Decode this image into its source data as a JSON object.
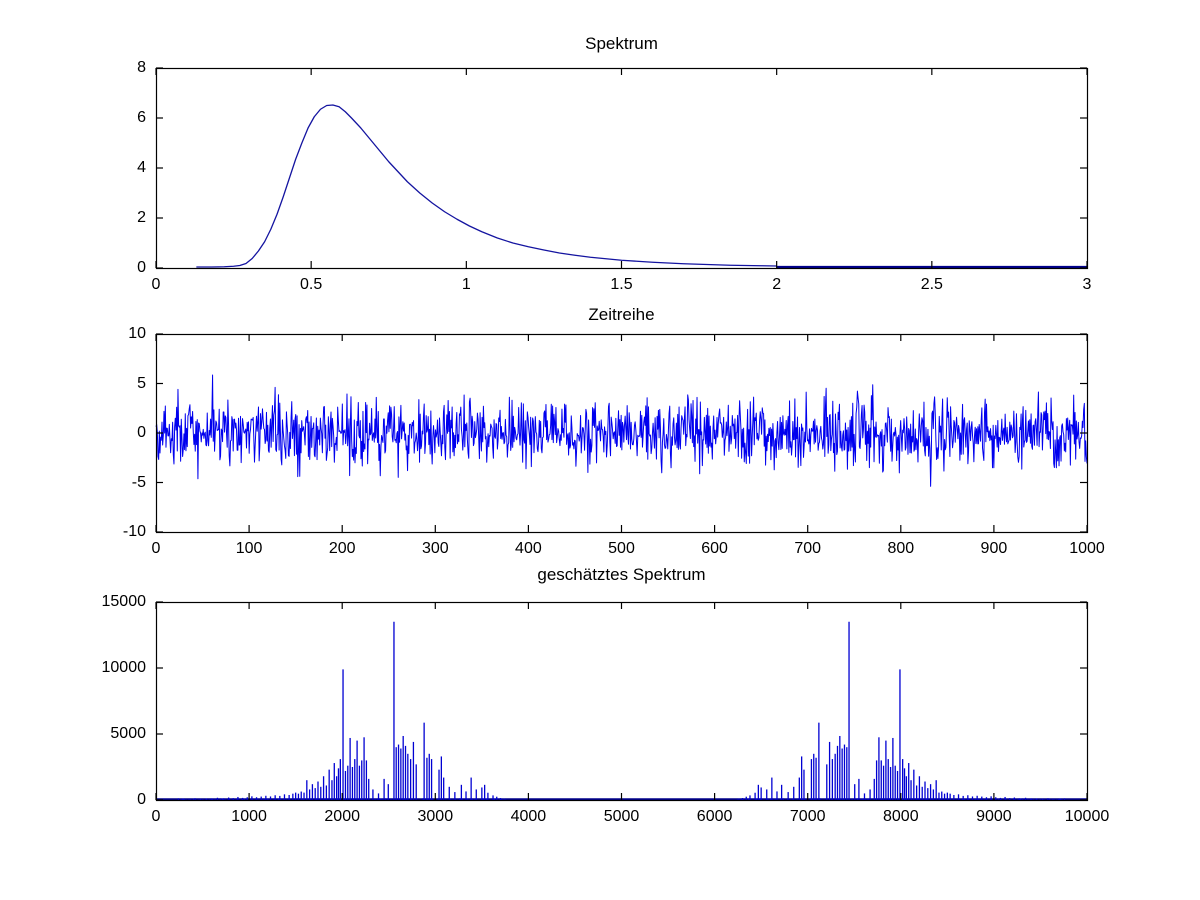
{
  "figure": {
    "background": "#ffffff",
    "type": "matlab-style-figure",
    "subplot_count": 3
  },
  "colors": {
    "frame": "#000000",
    "tick_text": "#000000",
    "spectrum_curve": "#1414A0",
    "baseline_thick": "#00008B",
    "timeseries_line": "#0000EE",
    "estimate_spikes": "#0000D2"
  },
  "chart_data": [
    {
      "type": "line",
      "title": "Spektrum",
      "xlim": [
        0,
        3
      ],
      "ylim": [
        0,
        8
      ],
      "xticks": [
        "0",
        "0.5",
        "1",
        "1.5",
        "2",
        "2.5",
        "3"
      ],
      "yticks": [
        "0",
        "2",
        "4",
        "6",
        "8"
      ],
      "grid": false,
      "legend": null,
      "peak": {
        "x": 0.55,
        "y": 6.5
      },
      "curve": [
        [
          0.13,
          0.04
        ],
        [
          0.18,
          0.04
        ],
        [
          0.22,
          0.05
        ],
        [
          0.25,
          0.07
        ],
        [
          0.27,
          0.1
        ],
        [
          0.29,
          0.18
        ],
        [
          0.31,
          0.38
        ],
        [
          0.33,
          0.68
        ],
        [
          0.35,
          1.05
        ],
        [
          0.37,
          1.55
        ],
        [
          0.39,
          2.15
        ],
        [
          0.41,
          2.85
        ],
        [
          0.43,
          3.6
        ],
        [
          0.45,
          4.35
        ],
        [
          0.47,
          5.0
        ],
        [
          0.49,
          5.6
        ],
        [
          0.51,
          6.05
        ],
        [
          0.53,
          6.35
        ],
        [
          0.55,
          6.5
        ],
        [
          0.57,
          6.52
        ],
        [
          0.59,
          6.45
        ],
        [
          0.61,
          6.25
        ],
        [
          0.63,
          6.0
        ],
        [
          0.66,
          5.6
        ],
        [
          0.69,
          5.15
        ],
        [
          0.72,
          4.7
        ],
        [
          0.75,
          4.25
        ],
        [
          0.78,
          3.85
        ],
        [
          0.81,
          3.45
        ],
        [
          0.85,
          3.0
        ],
        [
          0.89,
          2.6
        ],
        [
          0.93,
          2.25
        ],
        [
          0.97,
          1.95
        ],
        [
          1.01,
          1.68
        ],
        [
          1.05,
          1.45
        ],
        [
          1.1,
          1.2
        ],
        [
          1.15,
          1.0
        ],
        [
          1.2,
          0.85
        ],
        [
          1.25,
          0.72
        ],
        [
          1.3,
          0.6
        ],
        [
          1.35,
          0.51
        ],
        [
          1.4,
          0.43
        ],
        [
          1.45,
          0.37
        ],
        [
          1.5,
          0.31
        ],
        [
          1.55,
          0.27
        ],
        [
          1.6,
          0.23
        ],
        [
          1.65,
          0.2
        ],
        [
          1.7,
          0.17
        ],
        [
          1.75,
          0.15
        ],
        [
          1.8,
          0.13
        ],
        [
          1.85,
          0.11
        ],
        [
          1.9,
          0.1
        ],
        [
          1.95,
          0.09
        ],
        [
          2.0,
          0.08
        ]
      ],
      "flat_tail": {
        "from_x": 2.0,
        "to_x": 3.0,
        "y": 0.04,
        "appearance": "thick dark-blue line on axis"
      }
    },
    {
      "type": "line",
      "title": "Zeitreihe",
      "xlim": [
        0,
        1000
      ],
      "ylim": [
        -10,
        10
      ],
      "xticks": [
        "0",
        "100",
        "200",
        "300",
        "400",
        "500",
        "600",
        "700",
        "800",
        "900",
        "1000"
      ],
      "yticks": [
        "-10",
        "-5",
        "0",
        "5",
        "10"
      ],
      "grid": false,
      "legend": null,
      "noise_model": {
        "visual_estimate": true,
        "n_points": 1400,
        "mean": 0,
        "sigma": 1.65,
        "observed_range": [
          -6.8,
          6.6
        ],
        "solid_band": [
          -2.5,
          2.5
        ],
        "seed": 42,
        "method": "sum6uniform"
      }
    },
    {
      "type": "stem",
      "title": "geschätztes Spektrum",
      "xlim": [
        0,
        10000
      ],
      "ylim": [
        0,
        15000
      ],
      "xticks": [
        "0",
        "1000",
        "2000",
        "3000",
        "4000",
        "5000",
        "6000",
        "7000",
        "8000",
        "9000",
        "10000"
      ],
      "yticks": [
        "0",
        "5000",
        "10000",
        "15000"
      ],
      "grid": false,
      "legend": null,
      "mirror_axis": 5000,
      "mirrored": true,
      "major_peaks_left_half": [
        [
          300,
          70
        ],
        [
          370,
          50
        ],
        [
          420,
          130
        ],
        [
          480,
          90
        ],
        [
          540,
          110
        ],
        [
          600,
          70
        ],
        [
          660,
          170
        ],
        [
          720,
          110
        ],
        [
          780,
          190
        ],
        [
          830,
          140
        ],
        [
          880,
          230
        ],
        [
          930,
          160
        ],
        [
          980,
          210
        ],
        [
          1030,
          280
        ],
        [
          1080,
          210
        ],
        [
          1130,
          260
        ],
        [
          1180,
          320
        ],
        [
          1230,
          270
        ],
        [
          1280,
          360
        ],
        [
          1330,
          310
        ],
        [
          1380,
          430
        ],
        [
          1430,
          380
        ],
        [
          1470,
          480
        ],
        [
          1500,
          560
        ],
        [
          1530,
          480
        ],
        [
          1560,
          640
        ],
        [
          1590,
          560
        ],
        [
          1620,
          1500
        ],
        [
          1650,
          800
        ],
        [
          1680,
          1200
        ],
        [
          1710,
          900
        ],
        [
          1740,
          1400
        ],
        [
          1770,
          1000
        ],
        [
          1800,
          1800
        ],
        [
          1830,
          1100
        ],
        [
          1860,
          2300
        ],
        [
          1890,
          1500
        ],
        [
          1915,
          2800
        ],
        [
          1940,
          1800
        ],
        [
          1960,
          2400
        ],
        [
          1980,
          3100
        ],
        [
          2009,
          9900
        ],
        [
          2035,
          2200
        ],
        [
          2060,
          2600
        ],
        [
          2085,
          4700
        ],
        [
          2110,
          2500
        ],
        [
          2135,
          3100
        ],
        [
          2160,
          4500
        ],
        [
          2185,
          2600
        ],
        [
          2210,
          3000
        ],
        [
          2235,
          4750
        ],
        [
          2260,
          3000
        ],
        [
          2285,
          1600
        ],
        [
          2330,
          800
        ],
        [
          2390,
          500
        ],
        [
          2450,
          1600
        ],
        [
          2495,
          1200
        ],
        [
          2556,
          13500
        ],
        [
          2580,
          4000
        ],
        [
          2605,
          4200
        ],
        [
          2630,
          3900
        ],
        [
          2655,
          4850
        ],
        [
          2680,
          4100
        ],
        [
          2705,
          3500
        ],
        [
          2735,
          3100
        ],
        [
          2765,
          4400
        ],
        [
          2795,
          2700
        ],
        [
          2880,
          5860
        ],
        [
          2910,
          3200
        ],
        [
          2935,
          3500
        ],
        [
          2960,
          3100
        ],
        [
          3040,
          2300
        ],
        [
          3065,
          3300
        ],
        [
          3090,
          1700
        ],
        [
          3150,
          1000
        ],
        [
          3210,
          600
        ],
        [
          3280,
          1150
        ],
        [
          3330,
          650
        ],
        [
          3385,
          1700
        ],
        [
          3440,
          800
        ],
        [
          3500,
          950
        ],
        [
          3530,
          1150
        ],
        [
          3565,
          550
        ],
        [
          3620,
          350
        ],
        [
          3660,
          250
        ],
        [
          3700,
          150
        ]
      ],
      "noise_floor": {
        "visual_estimate": true,
        "x_range": [
          240,
          3760
        ],
        "height_range": [
          15,
          130
        ],
        "seed": 7
      },
      "tallest_peaks": [
        [
          2556,
          13500
        ],
        [
          7444,
          13500
        ],
        [
          2009,
          9900
        ],
        [
          7991,
          9900
        ]
      ]
    }
  ]
}
